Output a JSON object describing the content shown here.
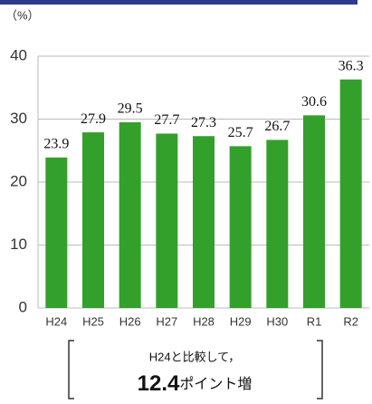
{
  "chart_data": {
    "type": "bar",
    "unit_label": "（%）",
    "categories": [
      "H24",
      "H25",
      "H26",
      "H27",
      "H28",
      "H29",
      "H30",
      "R1",
      "R2"
    ],
    "values": [
      23.9,
      27.9,
      29.5,
      27.7,
      27.3,
      25.7,
      26.7,
      30.6,
      36.3
    ],
    "color": "#33a02c",
    "ylim": [
      0,
      40
    ],
    "yticks": [
      0,
      10,
      20,
      30,
      40
    ],
    "grid": true,
    "annotation": {
      "line1": "H24と比較して，",
      "emphasis": "12.4",
      "suffix": "ポイント増"
    }
  }
}
